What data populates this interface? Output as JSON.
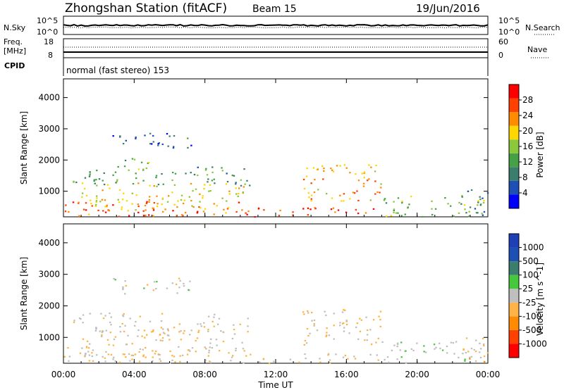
{
  "header": {
    "station": "Zhongshan Station (fitACF)",
    "beam": "Beam 15",
    "date": "19/Jun/2016"
  },
  "strip_labels": {
    "nsky": "N.Sky",
    "nsky_top": "10^5",
    "nsky_bottom": "10^0",
    "nsearch": "N.Search",
    "nsearch_top": "10^5",
    "nsearch_bottom": "10^0",
    "freq_line1": "Freq.",
    "freq_line2": "[MHz]",
    "freq_top": "18",
    "freq_bottom": "8",
    "nave": "Nave",
    "nave_top": "60",
    "nave_bottom": "0",
    "cpid": "CPID",
    "cpid_text": "normal (fast stereo) 153"
  },
  "x_axis": {
    "label": "Time UT",
    "ticks": [
      "00:00",
      "04:00",
      "08:00",
      "12:00",
      "16:00",
      "20:00",
      "00:00"
    ]
  },
  "colors": {
    "power_scale": [
      "#0000ff",
      "#1e4fb5",
      "#3c7d6e",
      "#46a046",
      "#8cc83c",
      "#ffd700",
      "#ff8c00",
      "#ff4000",
      "#ff0000"
    ],
    "velocity_scale": [
      "#ff0000",
      "#ff4000",
      "#ff8c00",
      "#ffb347",
      "#bfbfbf",
      "#46c83c",
      "#3c7d6e",
      "#1e4fb5",
      "#1e3fb5"
    ]
  },
  "chart_data": [
    {
      "type": "heatmap",
      "name": "power",
      "xlabel": "Time UT",
      "ylabel": "Slant Range [km]",
      "xlim": [
        0,
        24
      ],
      "ylim": [
        180,
        4600
      ],
      "yticks": [
        1000,
        2000,
        3000,
        4000
      ],
      "colorbar": {
        "label": "Power [dB]",
        "ticks": [
          4,
          8,
          12,
          16,
          20,
          24,
          28
        ],
        "range": [
          0,
          32
        ]
      },
      "regions": [
        {
          "t": [
            0.0,
            10.2
          ],
          "r": [
            200,
            700
          ],
          "level": 26
        },
        {
          "t": [
            1.0,
            10.2
          ],
          "r": [
            400,
            1300
          ],
          "level": 20
        },
        {
          "t": [
            0.5,
            10.5
          ],
          "r": [
            1200,
            1800
          ],
          "level": 12
        },
        {
          "t": [
            2.7,
            7.3
          ],
          "r": [
            2400,
            2900
          ],
          "level": 6
        },
        {
          "t": [
            3.0,
            4.8
          ],
          "r": [
            1700,
            2200
          ],
          "level": 14
        },
        {
          "t": [
            10.2,
            18.0
          ],
          "r": [
            200,
            500
          ],
          "level": 28
        },
        {
          "t": [
            13.5,
            18.0
          ],
          "r": [
            700,
            1900
          ],
          "level": 22
        },
        {
          "t": [
            18.0,
            23.8
          ],
          "r": [
            200,
            900
          ],
          "level": 14
        },
        {
          "t": [
            22.5,
            24.0
          ],
          "r": [
            200,
            1100
          ],
          "level": 10
        }
      ]
    },
    {
      "type": "heatmap",
      "name": "velocity",
      "xlabel": "Time UT",
      "ylabel": "Slant Range [km]",
      "xlim": [
        0,
        24
      ],
      "ylim": [
        180,
        4600
      ],
      "yticks": [
        1000,
        2000,
        3000,
        4000
      ],
      "colorbar": {
        "label": "Velocity [m s^-1]",
        "ticks": [
          "1000",
          "500",
          "100",
          "25",
          "-25",
          "-100",
          "-500",
          "-1000"
        ],
        "range": [
          -1000,
          1000
        ]
      },
      "regions": [
        {
          "t": [
            0.0,
            10.2
          ],
          "r": [
            200,
            700
          ],
          "level": -100
        },
        {
          "t": [
            1.0,
            10.2
          ],
          "r": [
            400,
            1300
          ],
          "level": -150
        },
        {
          "t": [
            0.5,
            10.5
          ],
          "r": [
            1200,
            1800
          ],
          "level": -60
        },
        {
          "t": [
            2.7,
            7.3
          ],
          "r": [
            2400,
            2900
          ],
          "level": 0
        },
        {
          "t": [
            10.2,
            18.0
          ],
          "r": [
            200,
            500
          ],
          "level": -100
        },
        {
          "t": [
            13.5,
            18.0
          ],
          "r": [
            700,
            1900
          ],
          "level": -120
        },
        {
          "t": [
            18.0,
            23.8
          ],
          "r": [
            200,
            900
          ],
          "level": 50
        },
        {
          "t": [
            22.5,
            24.0
          ],
          "r": [
            200,
            1100
          ],
          "level": -200
        }
      ]
    }
  ]
}
